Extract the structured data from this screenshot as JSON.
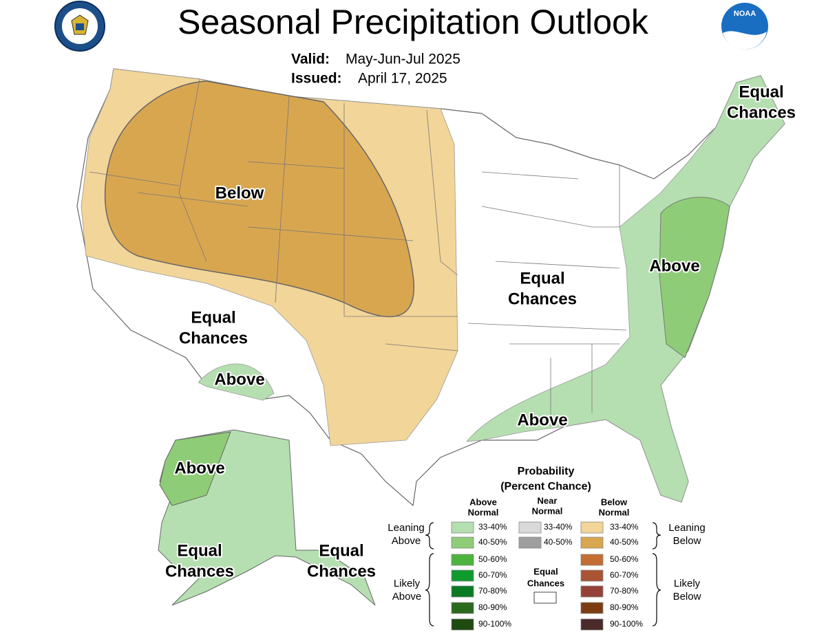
{
  "header": {
    "title": "Seasonal Precipitation Outlook",
    "valid_label": "Valid:",
    "valid": "May-Jun-Jul 2025",
    "issued_label": "Issued:",
    "issued": "April 17, 2025",
    "noaa_logo": "NOAA"
  },
  "map_labels": [
    {
      "lines": [
        "Below"
      ]
    },
    {
      "lines": [
        "Equal",
        "Chances"
      ]
    },
    {
      "lines": [
        "Above"
      ]
    },
    {
      "lines": [
        "Equal",
        "Chances"
      ]
    },
    {
      "lines": [
        "Above"
      ]
    },
    {
      "lines": [
        "Above"
      ]
    },
    {
      "lines": [
        "Equal",
        "Chances"
      ]
    },
    {
      "lines": [
        "Above"
      ]
    },
    {
      "lines": [
        "Equal",
        "Chances"
      ]
    },
    {
      "lines": [
        "Equal",
        "Chances"
      ]
    }
  ],
  "legend": {
    "title": "Probability",
    "subtitle": "(Percent Chance)",
    "columns": [
      {
        "heading": [
          "Above",
          "Normal"
        ],
        "entries": [
          {
            "label": "33-40%",
            "color": "#b5dfb0"
          },
          {
            "label": "40-50%",
            "color": "#8fcc78"
          },
          {
            "label": "50-60%",
            "color": "#4db43d"
          },
          {
            "label": "60-70%",
            "color": "#0f9a2c"
          },
          {
            "label": "70-80%",
            "color": "#0b7a24"
          },
          {
            "label": "80-90%",
            "color": "#2a6a1c"
          },
          {
            "label": "90-100%",
            "color": "#1f4a10"
          }
        ]
      },
      {
        "heading": [
          "Near",
          "Normal"
        ],
        "entries": [
          {
            "label": "33-40%",
            "color": "#d9d9d9"
          },
          {
            "label": "40-50%",
            "color": "#9e9e9e"
          }
        ]
      },
      {
        "heading": [
          "Below",
          "Normal"
        ],
        "entries": [
          {
            "label": "33-40%",
            "color": "#f2d598"
          },
          {
            "label": "40-50%",
            "color": "#d9a650"
          },
          {
            "label": "50-60%",
            "color": "#c46e34"
          },
          {
            "label": "60-70%",
            "color": "#a95434"
          },
          {
            "label": "70-80%",
            "color": "#944238"
          },
          {
            "label": "80-90%",
            "color": "#7b3d10"
          },
          {
            "label": "90-100%",
            "color": "#4b2a2a"
          }
        ]
      }
    ],
    "side_labels": [
      [
        "Leaning",
        "Above"
      ],
      [
        "Likely",
        "Above"
      ],
      [
        "Leaning",
        "Below"
      ],
      [
        "Likely",
        "Below"
      ]
    ],
    "equal_chances": [
      "Equal",
      "Chances"
    ]
  }
}
